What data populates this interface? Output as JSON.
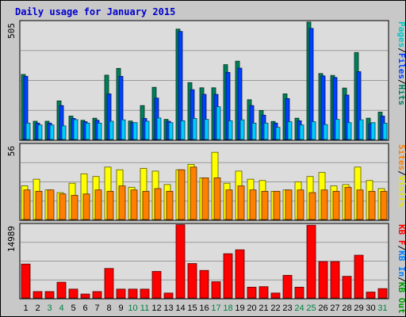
{
  "chart_data": {
    "type": "bar",
    "title": "Daily usage for January 2015",
    "days": [
      "1",
      "2",
      "3",
      "4",
      "5",
      "6",
      "7",
      "8",
      "9",
      "10",
      "11",
      "12",
      "13",
      "14",
      "15",
      "16",
      "17",
      "18",
      "19",
      "20",
      "21",
      "22",
      "23",
      "24",
      "25",
      "26",
      "27",
      "28",
      "29",
      "30",
      "31"
    ],
    "weekend_days": [
      "3",
      "4",
      "10",
      "11",
      "17",
      "18",
      "24",
      "25",
      "31"
    ],
    "colors": {
      "frame": "#c8c8c8",
      "panel_bg": "#dcdcdc",
      "title": "#0000cc",
      "hits": "#00805a",
      "files": "#0040ff",
      "pages": "#00e0ff",
      "visits": "#ffff00",
      "sites": "#ff8000",
      "kbf": "#ff0000",
      "kbin": "#0080ff",
      "kbout": "#00a000",
      "weekday_text": "#000000",
      "weekend_text": "#008040"
    },
    "panels": [
      {
        "max_label": "505",
        "ymax": 505,
        "legend": [
          {
            "text": "Pages",
            "color": "#00c8c8"
          },
          {
            "text": "/",
            "color": "#000000"
          },
          {
            "text": "Files",
            "color": "#0040ff"
          },
          {
            "text": "/",
            "color": "#000000"
          },
          {
            "text": "Hits",
            "color": "#008060"
          }
        ],
        "series": [
          {
            "name": "Hits",
            "color": "#00805a",
            "values": [
              278,
              78,
              78,
              165,
              100,
              82,
              91,
              275,
              304,
              79,
              145,
              223,
              86,
              472,
              243,
              221,
              221,
              320,
              335,
              170,
              124,
              77,
              195,
              91,
              502,
              282,
              274,
              220,
              372,
              91,
              117
            ]
          },
          {
            "name": "Files",
            "color": "#0040ff",
            "values": [
              270,
              70,
              70,
              145,
              90,
              76,
              82,
              195,
              270,
              72,
              90,
              177,
              78,
              462,
              213,
              193,
              193,
              287,
              305,
              145,
              104,
              70,
              175,
              80,
              475,
              272,
              265,
              190,
              290,
              67,
              100
            ]
          },
          {
            "name": "Pages",
            "color": "#00ccff",
            "values": [
              70,
              62,
              62,
              58,
              85,
              70,
              70,
              78,
              84,
              72,
              78,
              92,
              72,
              80,
              90,
              86,
              140,
              80,
              84,
              70,
              70,
              52,
              76,
              62,
              76,
              64,
              86,
              72,
              84,
              72,
              70
            ]
          }
        ]
      },
      {
        "max_label": "56",
        "ymax": 56,
        "legend": [
          {
            "text": "Sites",
            "color": "#ff8000"
          },
          {
            "text": "/",
            "color": "#000000"
          },
          {
            "text": "Visits",
            "color": "#e8e800"
          }
        ],
        "series": [
          {
            "name": "Visits",
            "color": "#ffff00",
            "values": [
              25,
              30,
              22,
              20,
              27,
              34,
              32,
              39,
              37,
              24,
              38,
              36,
              26,
              37,
              41,
              31,
              50,
              27,
              36,
              30,
              29,
              21,
              22,
              28,
              32,
              35,
              25,
              26,
              39,
              29,
              23
            ]
          },
          {
            "name": "Sites",
            "color": "#ff8000",
            "values": [
              22,
              21,
              22,
              19,
              18,
              19,
              22,
              21,
              25,
              22,
              21,
              23,
              21,
              37,
              39,
              31,
              31,
              22,
              25,
              22,
              21,
              21,
              22,
              22,
              20,
              22,
              21,
              24,
              22,
              21,
              21
            ]
          }
        ]
      },
      {
        "max_label": "14989",
        "ymax": 14989,
        "legend": [
          {
            "text": "KB F",
            "color": "#ff0000"
          },
          {
            "text": "/",
            "color": "#000000"
          },
          {
            "text": "KB In",
            "color": "#0080ff"
          },
          {
            "text": "/",
            "color": "#000000"
          },
          {
            "text": "KB Out",
            "color": "#00a000"
          }
        ],
        "series": [
          {
            "name": "KB F",
            "color": "#ff0000",
            "values": [
              6900,
              1300,
              1300,
              3200,
              1800,
              800,
              1300,
              6000,
              1800,
              1800,
              1800,
              5400,
              1000,
              14900,
              7000,
              5600,
              3300,
              9000,
              9800,
              2200,
              2300,
              1000,
              4600,
              2200,
              14800,
              7400,
              7400,
              4400,
              8700,
              1200,
              1900
            ]
          }
        ]
      }
    ]
  }
}
